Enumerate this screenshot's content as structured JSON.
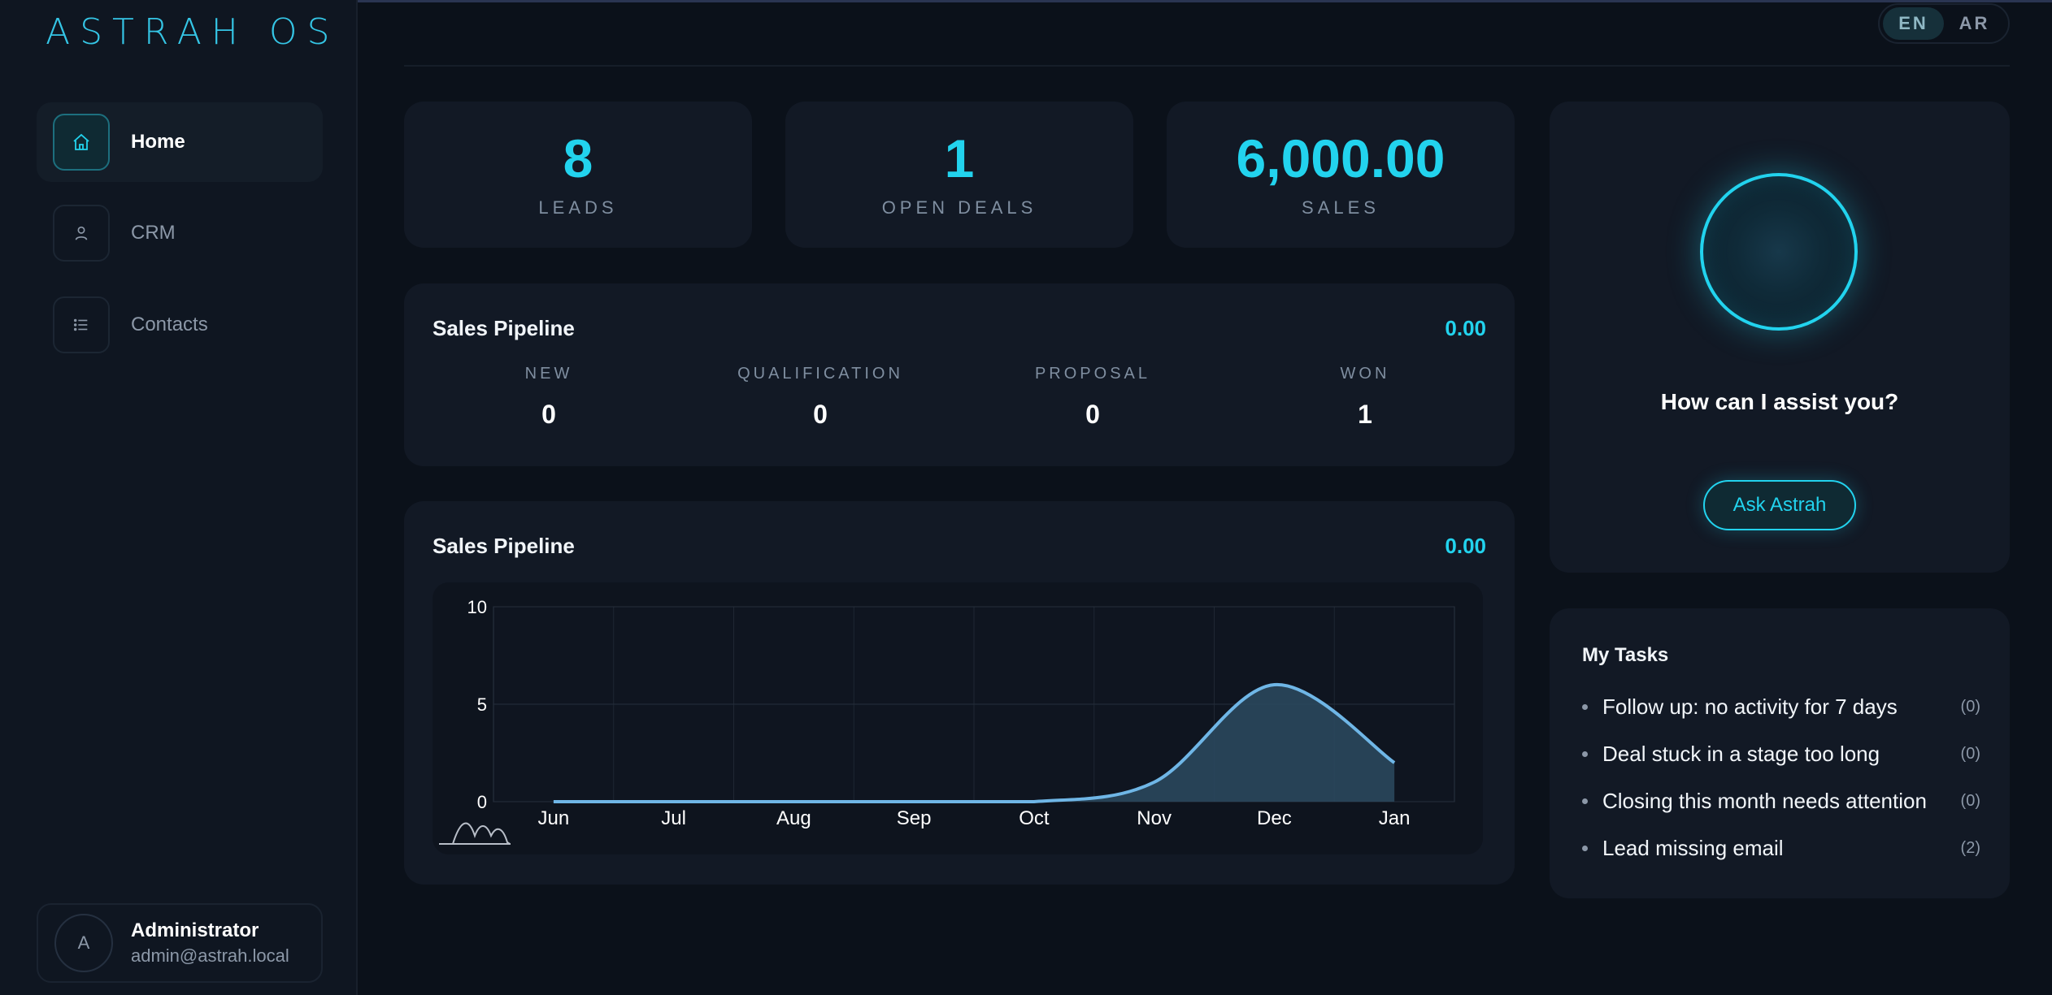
{
  "brand": {
    "logo_text": "ASTRAH OS"
  },
  "language": {
    "options": [
      "EN",
      "AR"
    ],
    "active": "EN"
  },
  "sidebar": {
    "items": [
      {
        "label": "Home",
        "icon": "home-icon",
        "active": true
      },
      {
        "label": "CRM",
        "icon": "person-icon",
        "active": false
      },
      {
        "label": "Contacts",
        "icon": "list-icon",
        "active": false
      }
    ],
    "user": {
      "initial": "A",
      "name": "Administrator",
      "email": "admin@astrah.local"
    }
  },
  "kpis": [
    {
      "value": "8",
      "label": "LEADS"
    },
    {
      "value": "1",
      "label": "OPEN DEALS"
    },
    {
      "value": "6,000.00",
      "label": "SALES"
    }
  ],
  "pipeline": {
    "title": "Sales Pipeline",
    "amount": "0.00",
    "stages": [
      {
        "label": "NEW",
        "count": "0"
      },
      {
        "label": "QUALIFICATION",
        "count": "0"
      },
      {
        "label": "PROPOSAL",
        "count": "0"
      },
      {
        "label": "WON",
        "count": "1"
      }
    ]
  },
  "pipeline_chart_card": {
    "title": "Sales Pipeline",
    "amount": "0.00"
  },
  "chart_data": {
    "type": "area",
    "title": "",
    "xlabel": "",
    "ylabel": "",
    "categories": [
      "Jun",
      "Jul",
      "Aug",
      "Sep",
      "Oct",
      "Nov",
      "Dec",
      "Jan"
    ],
    "values": [
      0,
      0,
      0,
      0,
      0,
      1,
      6,
      2
    ],
    "ylim": [
      0,
      10
    ],
    "yticks": [
      0,
      5,
      10
    ],
    "grid": true,
    "colors": {
      "line": "#6fb6e6",
      "fill": "#2b4a60"
    }
  },
  "assistant": {
    "question": "How can I assist you?",
    "button": "Ask Astrah"
  },
  "tasks": {
    "title": "My Tasks",
    "items": [
      {
        "text": "Follow up: no activity for 7 days",
        "count": "(0)"
      },
      {
        "text": "Deal stuck in a stage too long",
        "count": "(0)"
      },
      {
        "text": "Closing this month needs attention",
        "count": "(0)"
      },
      {
        "text": "Lead missing email",
        "count": "(2)"
      }
    ]
  },
  "colors": {
    "accent": "#22d3ee",
    "background": "#0b111a",
    "card": "#121925"
  }
}
